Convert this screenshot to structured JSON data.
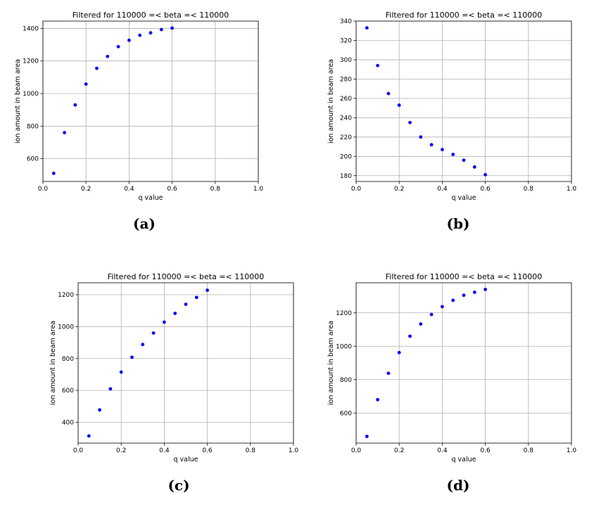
{
  "figure": {
    "panels": [
      "(a)",
      "(b)",
      "(c)",
      "(d)"
    ]
  },
  "chart_data": [
    {
      "type": "scatter",
      "title": "Filtered for 110000 =< beta =< 110000",
      "xlabel": "q value",
      "ylabel": "ion amount in beam area",
      "xlim": [
        0,
        1
      ],
      "ylim": [
        460,
        1445
      ],
      "xticks": [
        "0.0",
        "0.2",
        "0.4",
        "0.6",
        "0.8",
        "1.0"
      ],
      "yticks": [
        600,
        800,
        1000,
        1200,
        1400
      ],
      "grid": true,
      "marker_color": "#0000ff",
      "x": [
        0.05,
        0.1,
        0.15,
        0.2,
        0.25,
        0.3,
        0.35,
        0.4,
        0.45,
        0.5,
        0.55,
        0.6
      ],
      "y": [
        510,
        760,
        930,
        1058,
        1155,
        1228,
        1288,
        1327,
        1358,
        1373,
        1393,
        1402
      ]
    },
    {
      "type": "scatter",
      "title": "Filtered for 110000 =< beta =< 110000",
      "xlabel": "q value",
      "ylabel": "ion amount in beam area",
      "xlim": [
        0,
        1
      ],
      "ylim": [
        174,
        340
      ],
      "xticks": [
        "0.0",
        "0.2",
        "0.4",
        "0.6",
        "0.8",
        "1.0"
      ],
      "yticks": [
        180,
        200,
        220,
        240,
        260,
        280,
        300,
        320,
        340
      ],
      "grid": true,
      "marker_color": "#0000ff",
      "x": [
        0.05,
        0.1,
        0.15,
        0.2,
        0.25,
        0.3,
        0.35,
        0.4,
        0.45,
        0.5,
        0.55,
        0.6
      ],
      "y": [
        333,
        294,
        265,
        253,
        235,
        220,
        212,
        207,
        202,
        196,
        189,
        181
      ]
    },
    {
      "type": "scatter",
      "title": "Filtered for 110000 =< beta =< 110000",
      "xlabel": "q value",
      "ylabel": "ion amount in beam area",
      "xlim": [
        0,
        1
      ],
      "ylim": [
        270,
        1275
      ],
      "xticks": [
        "0.0",
        "0.2",
        "0.4",
        "0.6",
        "0.8",
        "1.0"
      ],
      "yticks": [
        400,
        600,
        800,
        1000,
        1200
      ],
      "grid": true,
      "marker_color": "#0000ff",
      "x": [
        0.05,
        0.1,
        0.15,
        0.2,
        0.25,
        0.3,
        0.35,
        0.4,
        0.45,
        0.5,
        0.55,
        0.6
      ],
      "y": [
        315,
        478,
        610,
        715,
        808,
        888,
        960,
        1028,
        1083,
        1140,
        1183,
        1228
      ]
    },
    {
      "type": "scatter",
      "title": "Filtered for 110000 =< beta =< 110000",
      "xlabel": "q value",
      "ylabel": "ion amount in beam area",
      "xlim": [
        0,
        1
      ],
      "ylim": [
        420,
        1380
      ],
      "xticks": [
        "0.0",
        "0.2",
        "0.4",
        "0.6",
        "0.8",
        "1.0"
      ],
      "yticks": [
        600,
        800,
        1000,
        1200
      ],
      "grid": true,
      "marker_color": "#0000ff",
      "x": [
        0.05,
        0.1,
        0.15,
        0.2,
        0.25,
        0.3,
        0.35,
        0.4,
        0.45,
        0.5,
        0.55,
        0.6
      ],
      "y": [
        460,
        680,
        838,
        962,
        1060,
        1133,
        1190,
        1237,
        1275,
        1305,
        1323,
        1340
      ]
    }
  ]
}
